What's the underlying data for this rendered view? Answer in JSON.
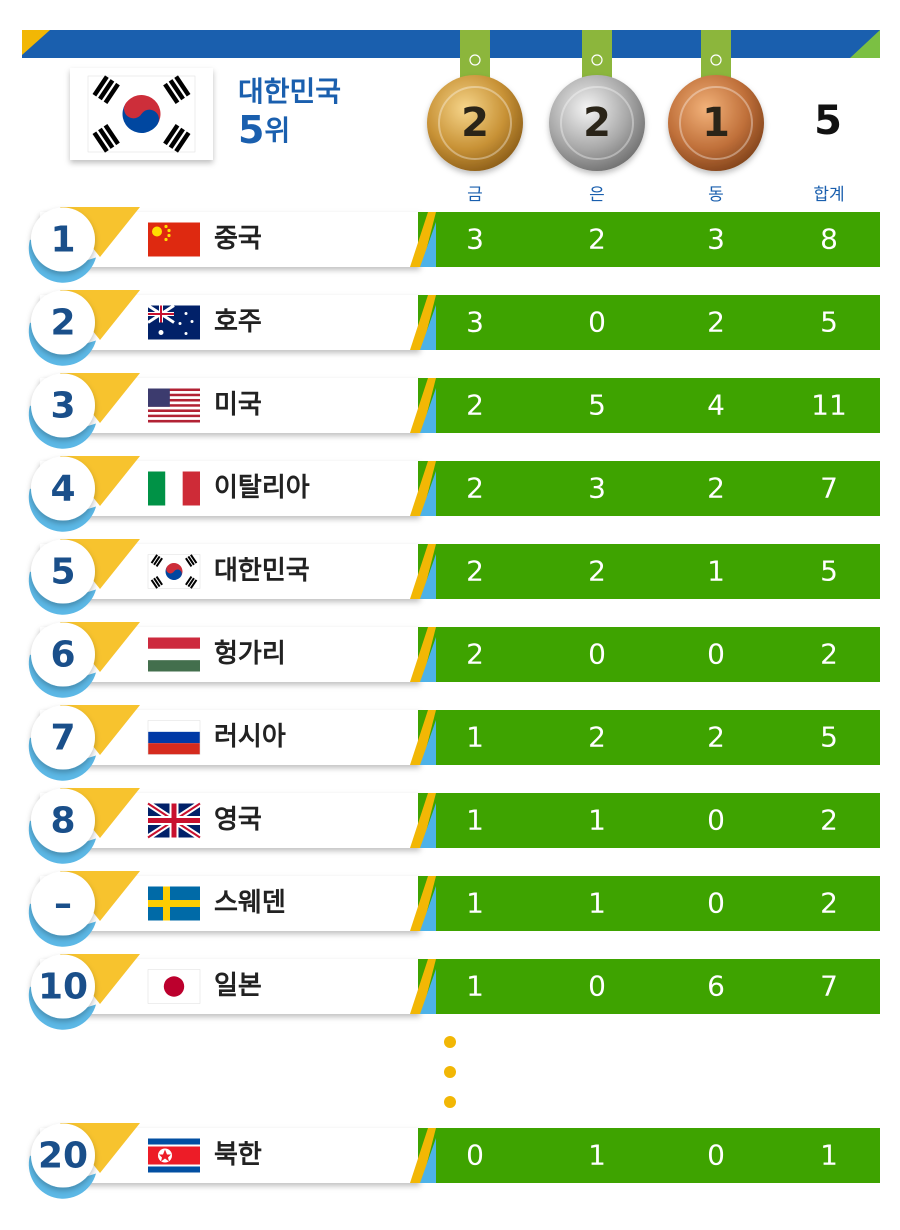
{
  "header": {
    "country": "대한민국",
    "rank": 5,
    "rank_suffix": "위",
    "gold": 2,
    "silver": 2,
    "bronze": 1,
    "total": 5
  },
  "columns": [
    "금",
    "은",
    "동",
    "합계"
  ],
  "rows": [
    {
      "rank": 1,
      "name": "중국",
      "gold": 3,
      "silver": 2,
      "bronze": 3,
      "total": 8
    },
    {
      "rank": 2,
      "name": "호주",
      "gold": 3,
      "silver": 0,
      "bronze": 2,
      "total": 5
    },
    {
      "rank": 3,
      "name": "미국",
      "gold": 2,
      "silver": 5,
      "bronze": 4,
      "total": 11
    },
    {
      "rank": 4,
      "name": "이탈리아",
      "gold": 2,
      "silver": 3,
      "bronze": 2,
      "total": 7
    },
    {
      "rank": 5,
      "name": "대한민국",
      "gold": 2,
      "silver": 2,
      "bronze": 1,
      "total": 5
    },
    {
      "rank": 6,
      "name": "헝가리",
      "gold": 2,
      "silver": 0,
      "bronze": 0,
      "total": 2
    },
    {
      "rank": 7,
      "name": "러시아",
      "gold": 1,
      "silver": 2,
      "bronze": 2,
      "total": 5
    },
    {
      "rank": 8,
      "name": "영국",
      "gold": 1,
      "silver": 1,
      "bronze": 0,
      "total": 2
    },
    {
      "rank": "–",
      "name": "스웨덴",
      "gold": 1,
      "silver": 1,
      "bronze": 0,
      "total": 2
    },
    {
      "rank": 10,
      "name": "일본",
      "gold": 1,
      "silver": 0,
      "bronze": 6,
      "total": 7
    },
    {
      "rank": 20,
      "name": "북한",
      "gold": 0,
      "silver": 1,
      "bronze": 0,
      "total": 1
    }
  ]
}
